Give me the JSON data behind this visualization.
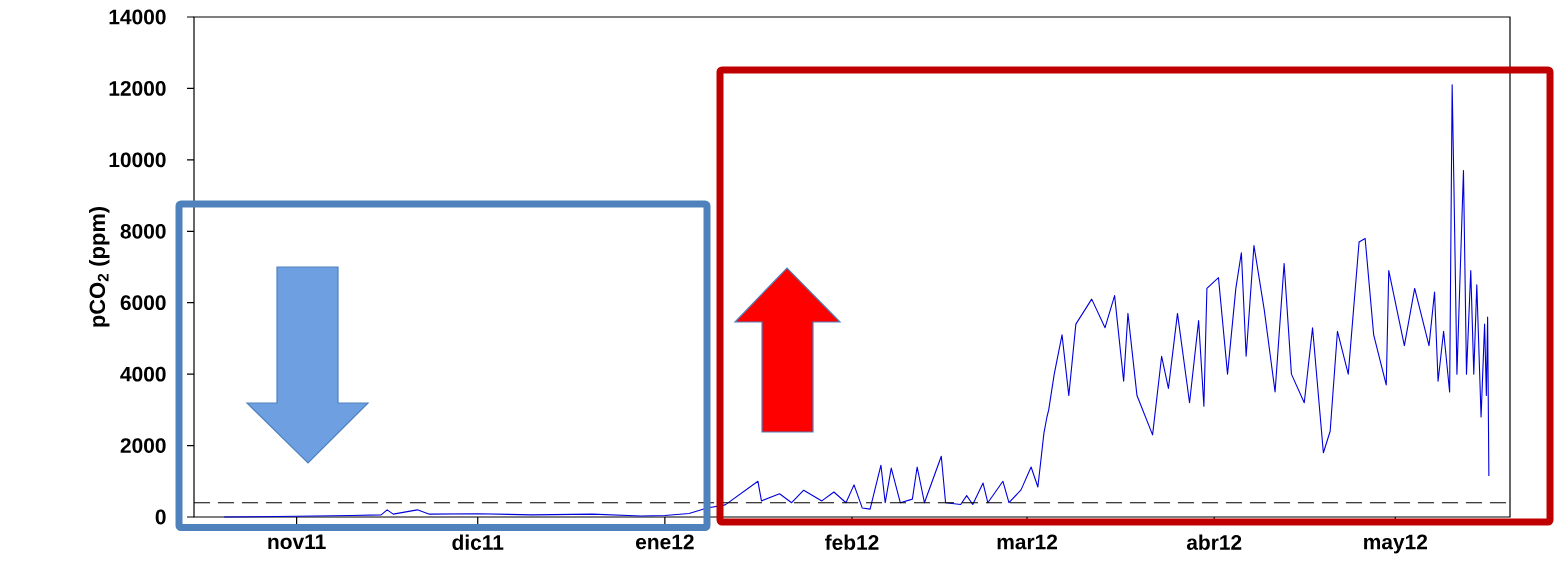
{
  "chart_data": {
    "type": "line",
    "ylabel": "pCO$_{2}$ (ppm)",
    "xlim": [
      "2011-10-15",
      "2012-05-20"
    ],
    "xticks": [
      {
        "value": "2011-11-01",
        "label": "nov11"
      },
      {
        "value": "2011-12-01",
        "label": "dic11"
      },
      {
        "value": "2012-01-01",
        "label": "ene12"
      },
      {
        "value": "2012-02-01",
        "label": "feb12"
      },
      {
        "value": "2012-03-01",
        "label": "mar12"
      },
      {
        "value": "2012-04-01",
        "label": "abr12"
      },
      {
        "value": "2012-05-01",
        "label": "may12"
      }
    ],
    "ylim": [
      0,
      14000
    ],
    "yticks": [
      0,
      2000,
      4000,
      6000,
      8000,
      10000,
      12000,
      14000
    ],
    "grid": false,
    "marker": "none",
    "line_style": "solid",
    "ref_lines": [
      {
        "axis": "y",
        "value": 400,
        "color": "#000000",
        "line_style": "dashed"
      }
    ],
    "series": [
      {
        "color": "#0000dd",
        "x": [
          "2011-10-20",
          "2011-11-01",
          "2011-11-10",
          "2011-11-15",
          "2011-11-16",
          "2011-11-17",
          "2011-11-21",
          "2011-11-23",
          "2011-12-01",
          "2011-12-10",
          "2011-12-20",
          "2011-12-28",
          "2012-01-01",
          "2012-01-05",
          "2012-01-08",
          "2012-01-11",
          "2012-01-16T10:00",
          "2012-01-17",
          "2012-01-20",
          "2012-01-22",
          "2012-01-24",
          "2012-01-27",
          "2012-01-29",
          "2012-01-31",
          "2012-02-01T08:00",
          "2012-02-02T17:00",
          "2012-02-04",
          "2012-02-05T19:00",
          "2012-02-06T12:00",
          "2012-02-07T12:00",
          "2012-02-09",
          "2012-02-11",
          "2012-02-11T19:00",
          "2012-02-13",
          "2012-02-15T19:00",
          "2012-02-16T12:00",
          "2012-02-19",
          "2012-02-20",
          "2012-02-21",
          "2012-02-22T17:00",
          "2012-02-23T12:00",
          "2012-02-26",
          "2012-02-27",
          "2012-02-29",
          "2012-03-01T16:00",
          "2012-03-02T19:00",
          "2012-03-03T19:00",
          "2012-03-04T07:00",
          "2012-03-04T14:00",
          "2012-03-05T12:00",
          "2012-03-06T19:00",
          "2012-03-07T22:00",
          "2012-03-09T02:00",
          "2012-03-11T17:00",
          "2012-03-13T22:00",
          "2012-03-15T12:00",
          "2012-03-17",
          "2012-03-17T17:00",
          "2012-03-19T05:00",
          "2012-03-21T19:00",
          "2012-03-23T07:00",
          "2012-03-24T10:00",
          "2012-03-25T22:00",
          "2012-03-27T22:00",
          "2012-03-29T10:00",
          "2012-03-30T07:00",
          "2012-03-30T19:00",
          "2012-04-01T17:00",
          "2012-04-03T05:00",
          "2012-04-04T14:00",
          "2012-04-05T12:00",
          "2012-04-06T07:00",
          "2012-04-07T14:00",
          "2012-04-09T07:00",
          "2012-04-11T02:00",
          "2012-04-12T14:00",
          "2012-04-13T19:00",
          "2012-04-15T22:00",
          "2012-04-17T07:00",
          "2012-04-19T02:00",
          "2012-04-20T05:00",
          "2012-04-21T10:00",
          "2012-04-23T05:00",
          "2012-04-25",
          "2012-04-26",
          "2012-04-27T10:00",
          "2012-04-29T12:00",
          "2012-04-29T22:00",
          "2012-05-02T12:00",
          "2012-05-04T05:00",
          "2012-05-06T14:00",
          "2012-05-07T12:00",
          "2012-05-08T02:00",
          "2012-05-09",
          "2012-05-10",
          "2012-05-10T10:00",
          "2012-05-10T17:00",
          "2012-05-11T05:00",
          "2012-05-12T07:00",
          "2012-05-12T19:00",
          "2012-05-13T12:00",
          "2012-05-14",
          "2012-05-14T12:00",
          "2012-05-15T05:00",
          "2012-05-15T19:00",
          "2012-05-16T02:00",
          "2012-05-16T07:00",
          "2012-05-16T12:00"
        ],
        "values": [
          0,
          20,
          40,
          60,
          200,
          80,
          200,
          80,
          90,
          60,
          80,
          30,
          40,
          100,
          250,
          340,
          1000,
          450,
          650,
          400,
          750,
          450,
          700,
          400,
          900,
          250,
          220,
          1450,
          400,
          1370,
          400,
          500,
          1400,
          400,
          1700,
          400,
          350,
          600,
          350,
          950,
          400,
          1000,
          400,
          760,
          1400,
          840,
          2350,
          2800,
          3000,
          4000,
          5100,
          3400,
          5400,
          6100,
          5300,
          6200,
          3800,
          5700,
          3400,
          2300,
          4500,
          3600,
          5700,
          3200,
          5500,
          3100,
          6400,
          6700,
          4000,
          6400,
          7400,
          4500,
          7600,
          5800,
          3500,
          7100,
          4000,
          3200,
          5300,
          1800,
          2400,
          5200,
          4000,
          7700,
          7800,
          5100,
          3700,
          6900,
          4800,
          6400,
          4800,
          6300,
          3800,
          5200,
          3500,
          12100,
          9300,
          4000,
          9700,
          4000,
          6900,
          4000,
          6500,
          2800,
          5400,
          3400,
          5600,
          1150
        ]
      }
    ]
  }
}
